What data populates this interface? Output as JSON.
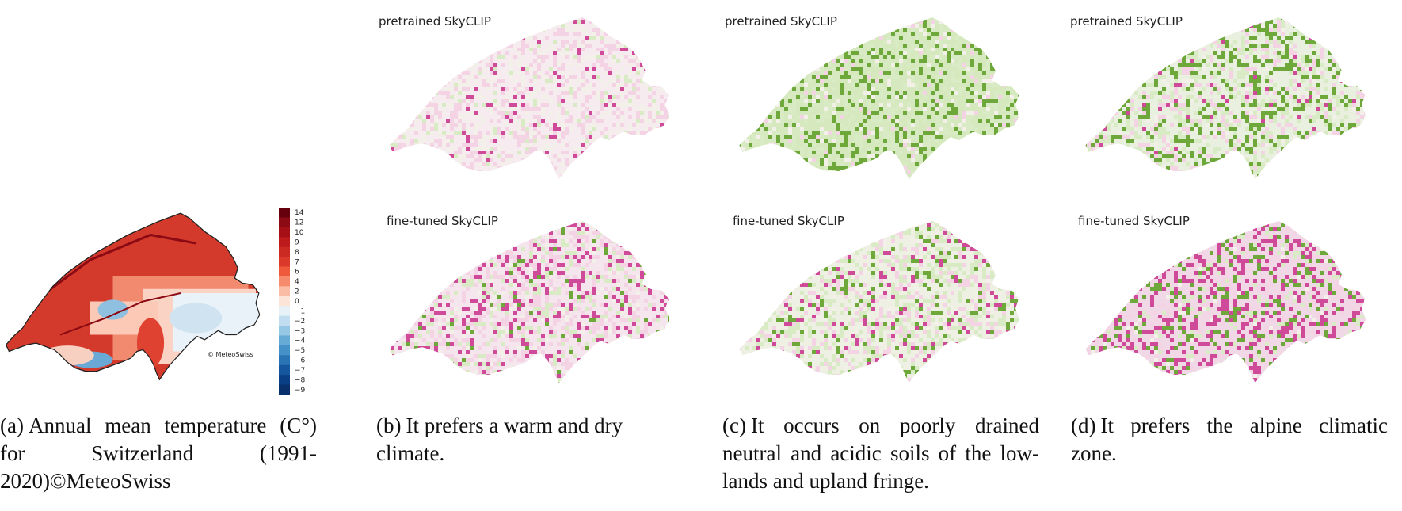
{
  "panels": {
    "a": {
      "caption_tag": "(a)",
      "caption_text": "Annual mean temperature (C°) for Switzerland (1991-2020)©MeteoSwiss",
      "credit": "© MeteoSwiss",
      "colorbar_ticks": [
        "14",
        "12",
        "10",
        "9",
        "8",
        "7",
        "6",
        "4",
        "2",
        "0",
        "−1",
        "−2",
        "−3",
        "−4",
        "−5",
        "−6",
        "−7",
        "−8",
        "−9"
      ],
      "colorbar_colors": [
        "#67000d",
        "#8c0a13",
        "#a50f15",
        "#bd1a1d",
        "#cb2a22",
        "#db3a2b",
        "#ef5a3c",
        "#f58a6c",
        "#fbbca5",
        "#fde4d9",
        "#e6f1f8",
        "#c2ddef",
        "#96c7e4",
        "#66abd6",
        "#4391c6",
        "#2a73b4",
        "#16569e",
        "#0b3f85",
        "#08306b"
      ]
    },
    "b": {
      "caption_tag": "(b)",
      "caption_text": "It prefers a warm and dry climate.",
      "top_label": "pretrained SkyCLIP",
      "bottom_label": "fine-tuned SkyCLIP"
    },
    "c": {
      "caption_tag": "(c)",
      "caption_text": "It occurs on poorly drained neutral and acidic soils of the low-lands and upland fringe.",
      "top_label": "pretrained SkyCLIP",
      "bottom_label": "fine-tuned SkyCLIP"
    },
    "d": {
      "caption_tag": "(d)",
      "caption_text": "It prefers the alpine climatic zone.",
      "top_label": "pretrained SkyCLIP",
      "bottom_label": "fine-tuned SkyCLIP"
    }
  },
  "colors": {
    "pink": "#d04a9a",
    "light_pink": "#f3d3e4",
    "green": "#6ea83a",
    "light_green": "#d9ebc4",
    "neutral": "#f3efe9"
  }
}
